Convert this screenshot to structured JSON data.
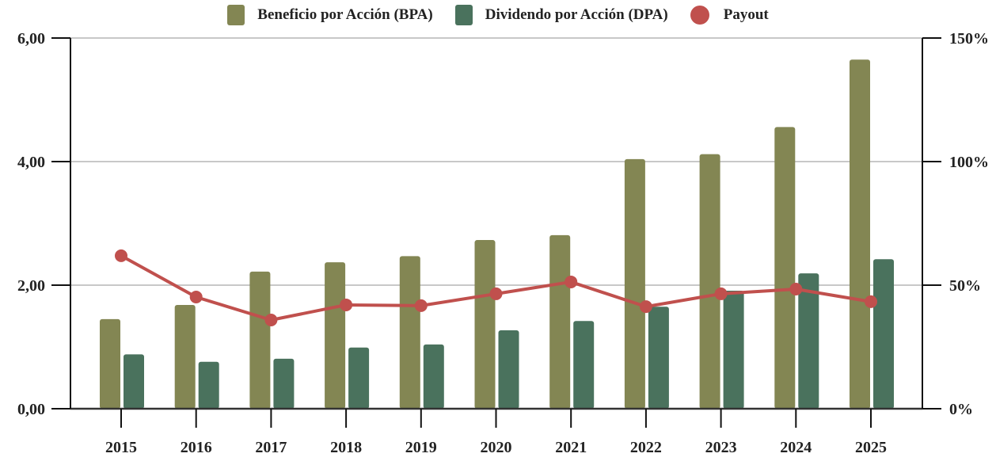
{
  "chart_data": {
    "type": "bar",
    "title": "",
    "xlabel": "",
    "ylabel": "",
    "y2label": "",
    "categories": [
      "2015",
      "2016",
      "2017",
      "2018",
      "2019",
      "2020",
      "2021",
      "2022",
      "2023",
      "2024",
      "2025"
    ],
    "series": [
      {
        "name": "Beneficio por Acción (BPA)",
        "type": "bar",
        "axis": "left",
        "color": "#838653",
        "values": [
          1.45,
          1.68,
          2.22,
          2.37,
          2.47,
          2.73,
          2.81,
          4.04,
          4.12,
          4.56,
          5.65
        ]
      },
      {
        "name": "Dividendo por Acción (DPA)",
        "type": "bar",
        "axis": "left",
        "color": "#4a725d",
        "values": [
          0.88,
          0.76,
          0.81,
          0.99,
          1.04,
          1.27,
          1.42,
          1.65,
          1.91,
          2.19,
          2.42
        ]
      },
      {
        "name": "Payout",
        "type": "line",
        "axis": "right",
        "color": "#c0504d",
        "values": [
          61.9,
          45.2,
          35.9,
          42.0,
          41.7,
          46.5,
          51.3,
          41.3,
          46.5,
          48.4,
          43.3
        ]
      }
    ],
    "ylim": [
      0,
      6
    ],
    "y2lim": [
      0,
      150
    ],
    "yticks": [
      "0,00",
      "2,00",
      "4,00",
      "6,00"
    ],
    "y2ticks": [
      "0%",
      "50%",
      "100%",
      "150%"
    ],
    "grid": true,
    "legend_position": "top-center"
  }
}
